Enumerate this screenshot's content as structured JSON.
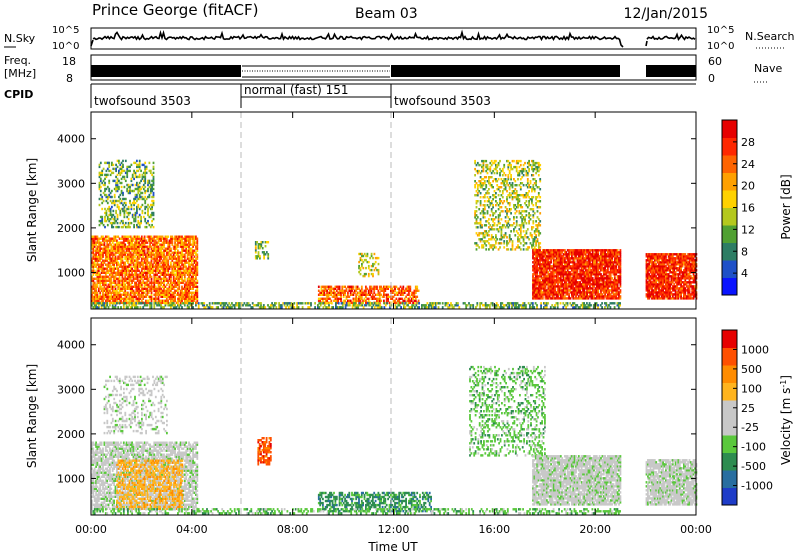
{
  "header": {
    "site": "Prince George (fitACF)",
    "beam": "Beam 03",
    "date": "12/Jan/2015"
  },
  "strips": {
    "nsky_label": "N.Sky",
    "nsearch_label": "N.Search",
    "freq_label_top": "Freq.",
    "freq_label_bottom": "[MHz]",
    "nave_label": "Nave",
    "cpid_label": "CPID",
    "nsky_ticks": [
      "10^5",
      "10^0"
    ],
    "nsearch_ticks": [
      "10^5",
      "10^0"
    ],
    "freq_ticks": [
      "18",
      "8"
    ],
    "nave_ticks": [
      "60",
      "0"
    ]
  },
  "chart_data": [
    {
      "type": "heatmap",
      "panel": "power",
      "title": "",
      "xlabel": "",
      "ylabel": "Slant Range [km]",
      "x_ticks": [
        "00:00",
        "04:00",
        "08:00",
        "12:00",
        "16:00",
        "20:00",
        "00:00"
      ],
      "x_tick_hours": [
        0,
        4,
        8,
        12,
        16,
        20,
        24
      ],
      "y_ticks": [
        1000,
        2000,
        3000,
        4000
      ],
      "ylim": [
        180,
        4600
      ],
      "colorbar": {
        "label": "Power [dB]",
        "ticks": [
          "4",
          "8",
          "12",
          "16",
          "20",
          "24",
          "28"
        ],
        "colors": [
          "#0a14ff",
          "#1e50c8",
          "#2d7d64",
          "#50a032",
          "#b4c81e",
          "#ffd200",
          "#ffa000",
          "#ff6400",
          "#ff2800",
          "#e60000"
        ]
      },
      "cpid_segments": [
        {
          "start_hour": 0,
          "end_hour": 6,
          "label": "twofsound 3503"
        },
        {
          "start_hour": 6,
          "end_hour": 12,
          "label": "normal (fast) 151"
        },
        {
          "start_hour": 12,
          "end_hour": 24,
          "label": "twofsound 3503"
        }
      ],
      "scatter_regions": [
        {
          "t0": 0.0,
          "t1": 4.2,
          "r0": 300,
          "r1": 1800,
          "level": 0.75,
          "density": 0.8
        },
        {
          "t0": 0.3,
          "t1": 2.5,
          "r0": 2000,
          "r1": 3500,
          "level": 0.35,
          "density": 0.35
        },
        {
          "t0": 6.5,
          "t1": 7.0,
          "r0": 1300,
          "r1": 1700,
          "level": 0.4,
          "density": 0.4
        },
        {
          "t0": 9.0,
          "t1": 13.0,
          "r0": 300,
          "r1": 700,
          "level": 0.8,
          "density": 0.65
        },
        {
          "t0": 10.6,
          "t1": 11.4,
          "r0": 900,
          "r1": 1400,
          "level": 0.5,
          "density": 0.35
        },
        {
          "t0": 15.2,
          "t1": 17.8,
          "r0": 1500,
          "r1": 3500,
          "level": 0.45,
          "density": 0.35
        },
        {
          "t0": 17.5,
          "t1": 21.0,
          "r0": 400,
          "r1": 1500,
          "level": 0.92,
          "density": 0.9
        },
        {
          "t0": 22.0,
          "t1": 24.0,
          "r0": 400,
          "r1": 1400,
          "level": 0.92,
          "density": 0.88
        },
        {
          "t0": 0.0,
          "t1": 21.0,
          "r0": 200,
          "r1": 320,
          "level": 0.35,
          "density": 0.5
        }
      ]
    },
    {
      "type": "heatmap",
      "panel": "velocity",
      "title": "",
      "xlabel": "Time UT",
      "ylabel": "Slant Range [km]",
      "x_ticks": [
        "00:00",
        "04:00",
        "08:00",
        "12:00",
        "16:00",
        "20:00",
        "00:00"
      ],
      "x_tick_hours": [
        0,
        4,
        8,
        12,
        16,
        20,
        24
      ],
      "y_ticks": [
        1000,
        2000,
        3000,
        4000
      ],
      "ylim": [
        180,
        4600
      ],
      "colorbar": {
        "label": "Velocity [m s^-1]",
        "ticks": [
          "1000",
          "500",
          "100",
          "25",
          "-25",
          "-100",
          "-500",
          "-1000"
        ],
        "colors": [
          "#1e3cc8",
          "#286ea0",
          "#2d8c50",
          "#5ac83c",
          "#c8c8c8",
          "#c8c8c8",
          "#ffb41e",
          "#ff8c00",
          "#ff5000",
          "#e60000"
        ]
      },
      "scatter_regions": [
        {
          "t0": 0.0,
          "t1": 4.2,
          "r0": 300,
          "r1": 1800,
          "color_index": 4,
          "density": 0.7
        },
        {
          "t0": 1.0,
          "t1": 3.6,
          "r0": 300,
          "r1": 1400,
          "color_index": 6,
          "density": 0.6
        },
        {
          "t0": 0.5,
          "t1": 3.0,
          "r0": 2000,
          "r1": 3300,
          "color_index": 4,
          "density": 0.25
        },
        {
          "t0": 6.6,
          "t1": 7.1,
          "r0": 1300,
          "r1": 1900,
          "color_index": 8,
          "density": 0.6
        },
        {
          "t0": 9.0,
          "t1": 13.5,
          "r0": 250,
          "r1": 700,
          "color_index": 2,
          "density": 0.5
        },
        {
          "t0": 15.0,
          "t1": 18.0,
          "r0": 1500,
          "r1": 3500,
          "color_index": 3,
          "density": 0.3
        },
        {
          "t0": 17.5,
          "t1": 21.0,
          "r0": 400,
          "r1": 1500,
          "color_index": 4,
          "density": 0.85
        },
        {
          "t0": 22.0,
          "t1": 24.0,
          "r0": 400,
          "r1": 1400,
          "color_index": 4,
          "density": 0.85
        },
        {
          "t0": 0.0,
          "t1": 21.0,
          "r0": 200,
          "r1": 320,
          "color_index": 3,
          "density": 0.4
        }
      ]
    }
  ]
}
